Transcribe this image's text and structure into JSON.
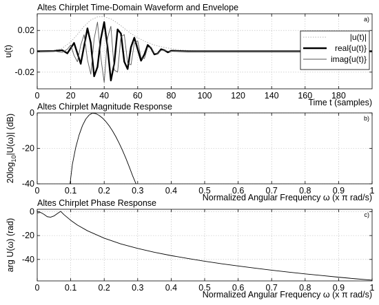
{
  "chart_data": [
    {
      "type": "line",
      "panel": "a)",
      "title": "Altes Chirplet Time-Domain Waveform and Envelope",
      "xlabel": "Time t (samples)",
      "ylabel": "u(t)",
      "xlim": [
        0,
        200
      ],
      "ylim": [
        -0.036,
        0.036
      ],
      "xticks": [
        0,
        20,
        40,
        60,
        80,
        100,
        120,
        140,
        160,
        180
      ],
      "yticks": [
        -0.02,
        0,
        0.02
      ],
      "ytick_labels": [
        "-0.02",
        "0",
        "0.02"
      ],
      "grid": true,
      "legend_position": "top-right",
      "series": [
        {
          "name": "|u(t)|",
          "style": "dotted",
          "color": "#9a9a9a",
          "x": [
            0,
            5,
            10,
            15,
            20,
            25,
            28,
            32,
            36,
            38,
            40,
            44,
            48,
            52,
            56,
            60,
            65,
            70,
            75,
            80,
            85,
            90,
            95,
            100,
            200
          ],
          "y": [
            0,
            0.0002,
            0.0008,
            0.003,
            0.009,
            0.018,
            0.024,
            0.03,
            0.033,
            0.0335,
            0.033,
            0.031,
            0.027,
            0.022,
            0.017,
            0.013,
            0.009,
            0.006,
            0.004,
            0.0025,
            0.0015,
            0.0008,
            0.0004,
            0.0001,
            0
          ]
        },
        {
          "name": "real{u(t)}",
          "style": "solid-thick",
          "color": "#000000",
          "x": [
            0,
            10,
            15,
            18,
            20,
            22,
            24,
            26,
            28,
            30,
            32,
            34,
            36,
            38,
            40,
            42,
            44,
            46,
            48,
            50,
            52,
            54,
            56,
            58,
            60,
            62,
            64,
            66,
            68,
            70,
            72,
            74,
            76,
            78,
            80,
            85,
            90,
            100,
            200
          ],
          "y": [
            0,
            0.0003,
            0.001,
            -0.002,
            0.003,
            0.008,
            -0.002,
            -0.012,
            0.005,
            0.022,
            0.008,
            -0.024,
            -0.015,
            0.012,
            0.028,
            0.004,
            -0.028,
            -0.012,
            0.021,
            0.017,
            -0.01,
            -0.017,
            0.004,
            0.013,
            0.002,
            -0.009,
            -0.003,
            0.006,
            0.003,
            -0.003,
            -0.002,
            0.002,
            0.001,
            -0.001,
            0.0005,
            0.0002,
            0,
            0,
            0
          ]
        },
        {
          "name": "imag{u(t)}",
          "style": "solid-thin",
          "color": "#555555",
          "x": [
            0,
            10,
            15,
            18,
            20,
            22,
            24,
            26,
            28,
            30,
            32,
            34,
            36,
            38,
            40,
            42,
            44,
            46,
            48,
            50,
            52,
            54,
            56,
            58,
            60,
            62,
            64,
            66,
            68,
            70,
            72,
            74,
            76,
            78,
            80,
            85,
            90,
            100,
            200
          ],
          "y": [
            0,
            0.0002,
            -0.001,
            0.002,
            0.006,
            -0.004,
            -0.01,
            0.006,
            0.016,
            -0.008,
            -0.022,
            0.012,
            0.028,
            -0.006,
            -0.03,
            0.013,
            0.024,
            -0.018,
            -0.02,
            0.014,
            0.016,
            -0.011,
            -0.013,
            0.008,
            0.01,
            -0.006,
            -0.007,
            0.004,
            0.004,
            -0.002,
            -0.002,
            0.001,
            0.001,
            0,
            0,
            0,
            0,
            0,
            0
          ]
        }
      ]
    },
    {
      "type": "line",
      "panel": "b)",
      "title": "Altes Chirplet Magnitude Response",
      "xlabel": "Normalized Angular Frequency",
      "xlabel_suffix": "ω (x π rad/s)",
      "ylabel_prefix": "20log",
      "ylabel_sub": "10",
      "ylabel_suffix": "|U(ω)| (dB)",
      "xlim": [
        0,
        1
      ],
      "ylim": [
        -40,
        0
      ],
      "xticks": [
        0,
        0.1,
        0.2,
        0.3,
        0.4,
        0.5,
        0.6,
        0.7,
        0.8,
        0.9,
        1
      ],
      "xtick_labels": [
        "0",
        "0.1",
        "0.2",
        "0.3",
        "0.4",
        "0.5",
        "0.6",
        "0.7",
        "0.8",
        "0.9",
        "1"
      ],
      "yticks": [
        -40,
        -20,
        0
      ],
      "ytick_labels": [
        "-40",
        "-20",
        "0"
      ],
      "grid": true,
      "series": [
        {
          "color": "#000000",
          "x": [
            0.098,
            0.105,
            0.115,
            0.125,
            0.135,
            0.145,
            0.155,
            0.165,
            0.175,
            0.185,
            0.195,
            0.205,
            0.215,
            0.225,
            0.235,
            0.245,
            0.255,
            0.265,
            0.275,
            0.285,
            0.295
          ],
          "y": [
            -40,
            -29,
            -19.5,
            -12.5,
            -7.2,
            -3.5,
            -1.2,
            -0.1,
            -0.4,
            -1.4,
            -2.9,
            -4.9,
            -7.3,
            -10.2,
            -13.5,
            -17.2,
            -21.3,
            -25.7,
            -30.5,
            -35.5,
            -40
          ]
        }
      ]
    },
    {
      "type": "line",
      "panel": "c)",
      "title": "Altes Chirplet Phase Response",
      "xlabel": "Normalized Angular Frequency",
      "xlabel_suffix": "ω (x π rad/s)",
      "ylabel": "arg U(ω) (rad)",
      "xlim": [
        0,
        1
      ],
      "ylim": [
        -58,
        2
      ],
      "xticks": [
        0,
        0.1,
        0.2,
        0.3,
        0.4,
        0.5,
        0.6,
        0.7,
        0.8,
        0.9,
        1
      ],
      "xtick_labels": [
        "0",
        "0.1",
        "0.2",
        "0.3",
        "0.4",
        "0.5",
        "0.6",
        "0.7",
        "0.8",
        "0.9",
        "1"
      ],
      "yticks": [
        -40,
        -20,
        0
      ],
      "ytick_labels": [
        "-40",
        "-20",
        "0"
      ],
      "grid": true,
      "series": [
        {
          "color": "#000000",
          "x": [
            0,
            0.01,
            0.02,
            0.03,
            0.04,
            0.05,
            0.06,
            0.07,
            0.08,
            0.1,
            0.12,
            0.15,
            0.2,
            0.25,
            0.3,
            0.35,
            0.4,
            0.45,
            0.5,
            0.55,
            0.6,
            0.65,
            0.7,
            0.75,
            0.8,
            0.85,
            0.9,
            0.95,
            1.0
          ],
          "y": [
            -1,
            -0.6,
            -2.2,
            -4.2,
            -4.6,
            -3.6,
            -1.6,
            0.3,
            -2.5,
            -7.2,
            -11.2,
            -16,
            -22.2,
            -27,
            -30.8,
            -34,
            -36.8,
            -39.2,
            -41.5,
            -43.6,
            -45.5,
            -47.3,
            -49,
            -50.6,
            -52.1,
            -53.5,
            -54.9,
            -56.2,
            -57.4
          ]
        }
      ]
    }
  ]
}
